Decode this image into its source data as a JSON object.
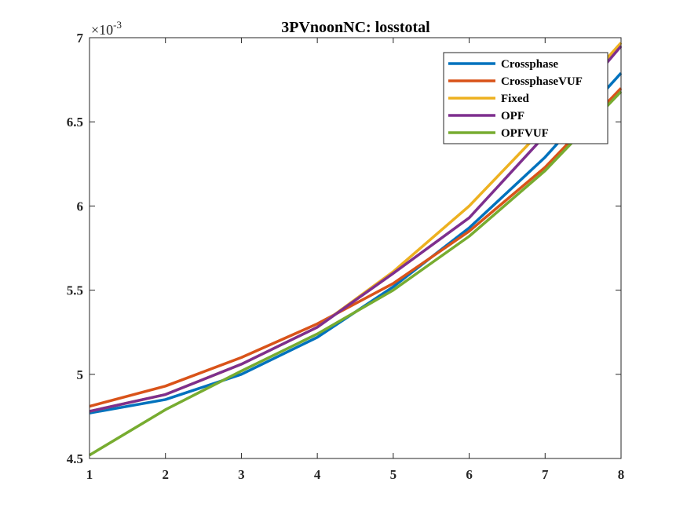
{
  "chart_data": {
    "type": "line",
    "title": "3PVnoonNC: losstotal",
    "xlabel": "",
    "ylabel": "",
    "xlim": [
      1,
      8
    ],
    "ylim": [
      4.5,
      7
    ],
    "x_ticks": [
      "1",
      "2",
      "3",
      "4",
      "5",
      "6",
      "7",
      "8"
    ],
    "y_ticks": [
      "4.5",
      "5",
      "5.5",
      "6",
      "6.5",
      "7"
    ],
    "y_exponent": {
      "base": "×10",
      "power": "-3"
    },
    "x": [
      1,
      2,
      3,
      4,
      5,
      6,
      7,
      8
    ],
    "legend_position": "top-right",
    "grid": false,
    "series": [
      {
        "name": "Crossphase",
        "color": "#0072BD",
        "values": [
          4.77,
          4.85,
          5.0,
          5.22,
          5.52,
          5.87,
          6.29,
          6.79
        ]
      },
      {
        "name": "CrossphaseVUF",
        "color": "#D95319",
        "values": [
          4.81,
          4.93,
          5.1,
          5.3,
          5.54,
          5.85,
          6.23,
          6.7
        ]
      },
      {
        "name": "Fixed",
        "color": "#EDB120",
        "values": [
          4.78,
          4.88,
          5.06,
          5.28,
          5.61,
          6.0,
          6.47,
          6.97
        ]
      },
      {
        "name": "OPF",
        "color": "#7E2F8E",
        "values": [
          4.78,
          4.88,
          5.06,
          5.28,
          5.6,
          5.93,
          6.42,
          6.95
        ]
      },
      {
        "name": "OPFVUF",
        "color": "#77AC30",
        "values": [
          4.52,
          4.79,
          5.02,
          5.24,
          5.5,
          5.82,
          6.21,
          6.68
        ]
      }
    ]
  }
}
